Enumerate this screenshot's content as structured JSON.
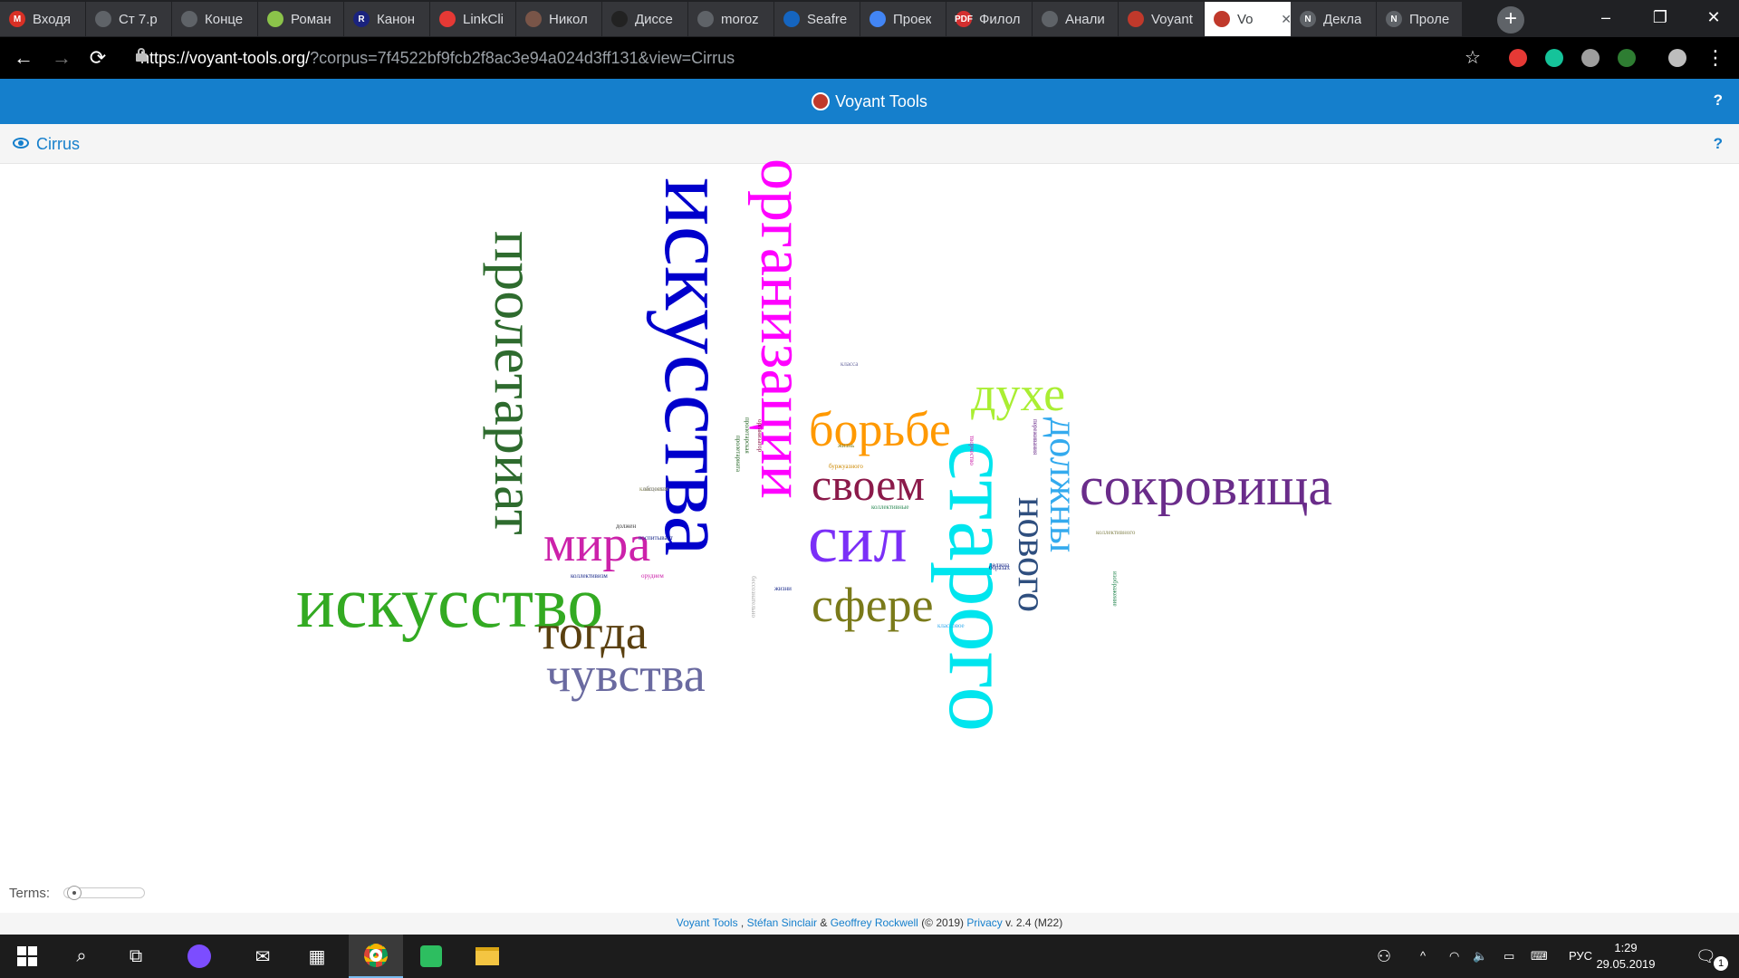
{
  "browser": {
    "tabs": [
      {
        "title": "Входя",
        "icon": "gmail-icon",
        "color": "#d93025",
        "glyph": "M"
      },
      {
        "title": "Ст 7.р",
        "icon": "globe-icon",
        "color": "#5f6368",
        "glyph": ""
      },
      {
        "title": "Конце",
        "icon": "panda-icon",
        "color": "#5f6368",
        "glyph": ""
      },
      {
        "title": "Роман",
        "icon": "bars-icon",
        "color": "#8bc34a",
        "glyph": ""
      },
      {
        "title": "Канон",
        "icon": "r-icon",
        "color": "#1a237e",
        "glyph": "R"
      },
      {
        "title": "LinkCli",
        "icon": "link-icon",
        "color": "#e53935",
        "glyph": ""
      },
      {
        "title": "Никол",
        "icon": "book-icon",
        "color": "#795548",
        "glyph": ""
      },
      {
        "title": "Диссе",
        "icon": "cat-icon",
        "color": "#222222",
        "glyph": ""
      },
      {
        "title": "moroz",
        "icon": "globe-icon",
        "color": "#5f6368",
        "glyph": ""
      },
      {
        "title": "Seafre",
        "icon": "chat-icon",
        "color": "#1565c0",
        "glyph": ""
      },
      {
        "title": "Проек",
        "icon": "docs-icon",
        "color": "#4285f4",
        "glyph": ""
      },
      {
        "title": "Филол",
        "icon": "pdf-icon",
        "color": "#d32f2f",
        "glyph": "PDF"
      },
      {
        "title": "Анали",
        "icon": "globe-icon",
        "color": "#5f6368",
        "glyph": ""
      },
      {
        "title": "Voyant",
        "icon": "voyant-icon",
        "color": "#c0392b",
        "glyph": ""
      },
      {
        "title": "Vo",
        "icon": "voyant-icon",
        "color": "#c0392b",
        "glyph": ""
      },
      {
        "title": "Декла",
        "icon": "n-icon",
        "color": "#5f6368",
        "glyph": "N"
      },
      {
        "title": "Проле",
        "icon": "n-icon",
        "color": "#5f6368",
        "glyph": "N"
      }
    ],
    "url_host": "https://voyant-tools.org/",
    "url_rest": "?corpus=7f4522bf9fcb2f8ac3e94a024d3ff131&view=Cirrus"
  },
  "app": {
    "title": "Voyant Tools",
    "help": "?",
    "panel_title": "Cirrus",
    "terms_label": "Terms:",
    "terms_slider_value": 0.05
  },
  "cloud": {
    "words": [
      {
        "text": "искусства",
        "color": "#0000cc"
      },
      {
        "text": "организации",
        "color": "#ff00ff"
      },
      {
        "text": "искусство",
        "color": "#33aa22"
      },
      {
        "text": "пролетариат",
        "color": "#2e6b2e"
      },
      {
        "text": "старого",
        "color": "#00e5ee"
      },
      {
        "text": "сокровища",
        "color": "#6a2c8a"
      },
      {
        "text": "сил",
        "color": "#7b2ff7"
      },
      {
        "text": "своем",
        "color": "#8b1a4a"
      },
      {
        "text": "борьбе",
        "color": "#ff9900"
      },
      {
        "text": "духе",
        "color": "#aaee33"
      },
      {
        "text": "должны",
        "color": "#33aaee"
      },
      {
        "text": "нового",
        "color": "#2f4f7f"
      },
      {
        "text": "мира",
        "color": "#cc22aa"
      },
      {
        "text": "сфере",
        "color": "#7a7a1a"
      },
      {
        "text": "тогда",
        "color": "#5a4010"
      },
      {
        "text": "чувства",
        "color": "#6a6aa0"
      }
    ],
    "small_words": [
      {
        "text": "воспитывает",
        "color": "#1a2a8a"
      },
      {
        "text": "коллективизм",
        "color": "#1a2a8a"
      },
      {
        "text": "должен",
        "color": "#333333"
      },
      {
        "text": "классовых",
        "color": "#888855"
      },
      {
        "text": "должна",
        "color": "#1a2a8a"
      },
      {
        "text": "коллективные",
        "color": "#2e8b57"
      },
      {
        "text": "жизни",
        "color": "#1a2a8a"
      },
      {
        "text": "пролетарская",
        "color": "#2e6b2e"
      },
      {
        "text": "творчество",
        "color": "#cc22aa"
      },
      {
        "text": "переживания",
        "color": "#6a2c8a"
      },
      {
        "text": "коллективного",
        "color": "#888855"
      },
      {
        "text": "изображение",
        "color": "#2e8b57"
      },
      {
        "text": "буржуазного",
        "color": "#cc8800"
      },
      {
        "text": "пролетариата",
        "color": "#2e6b2e"
      },
      {
        "text": "бессознательно",
        "color": "#aaaaaa"
      },
      {
        "text": "классовое",
        "color": "#33aaee"
      },
      {
        "text": "обществе",
        "color": "#888888"
      },
      {
        "text": "образах",
        "color": "#1a2a8a"
      },
      {
        "text": "организатор",
        "color": "#8b1a4a"
      },
      {
        "text": "орудием",
        "color": "#cc22aa"
      },
      {
        "text": "жизнь",
        "color": "#7a7a1a"
      },
      {
        "text": "класса",
        "color": "#6a6aa0"
      }
    ]
  },
  "footer": {
    "app_link": "Voyant Tools",
    "sep1": ",",
    "author1": "Stéfan Sinclair",
    "amp": "&",
    "author2": "Geoffrey Rockwell",
    "year": "(© 2019)",
    "privacy": "Privacy",
    "version": "v. 2.4 (M22)"
  },
  "taskbar": {
    "lang": "РУС",
    "time": "1:29",
    "date": "29.05.2019",
    "notifications": "1"
  }
}
